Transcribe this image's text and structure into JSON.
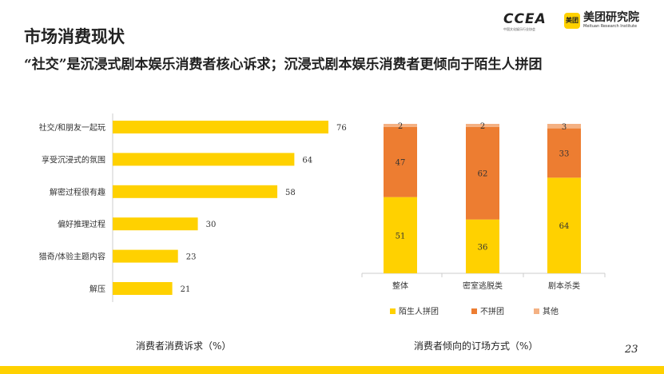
{
  "header": {
    "title": "市场消费现状",
    "subtitle": "“社交”是沉浸式剧本娱乐消费者核心诉求；沉浸式剧本娱乐消费者更倾向于陌生人拼团"
  },
  "logos": {
    "ccea": "CCEA",
    "ccea_sub": "中国文化娱乐行业协会",
    "meituan_mark": "美团",
    "meituan_name": "美团研究院",
    "meituan_en": "Meituan Research Institute"
  },
  "colors": {
    "yellow": "#FFD100",
    "orange": "#ED7D31",
    "light": "#F4B183"
  },
  "page_number": "23",
  "chart_data": [
    {
      "type": "bar",
      "orientation": "horizontal",
      "title": "消费者消费诉求（%）",
      "categories": [
        "社交/和朋友一起玩",
        "享受沉浸式的氛围",
        "解密过程很有趣",
        "偏好推理过程",
        "猎奇/体验主题内容",
        "解压"
      ],
      "values": [
        76,
        64,
        58,
        30,
        23,
        21
      ],
      "xlim": [
        0,
        80
      ],
      "grid": false
    },
    {
      "type": "bar",
      "stacked": true,
      "title": "消费者倾向的订场方式（%）",
      "categories": [
        "整体",
        "密室逃脱类",
        "剧本杀类"
      ],
      "series": [
        {
          "name": "陌生人拼团",
          "values": [
            51,
            36,
            64
          ]
        },
        {
          "name": "不拼团",
          "values": [
            47,
            62,
            33
          ]
        },
        {
          "name": "其他",
          "values": [
            2,
            2,
            3
          ]
        }
      ],
      "ylim": [
        0,
        100
      ],
      "legend": "bottom",
      "grid": false
    }
  ]
}
